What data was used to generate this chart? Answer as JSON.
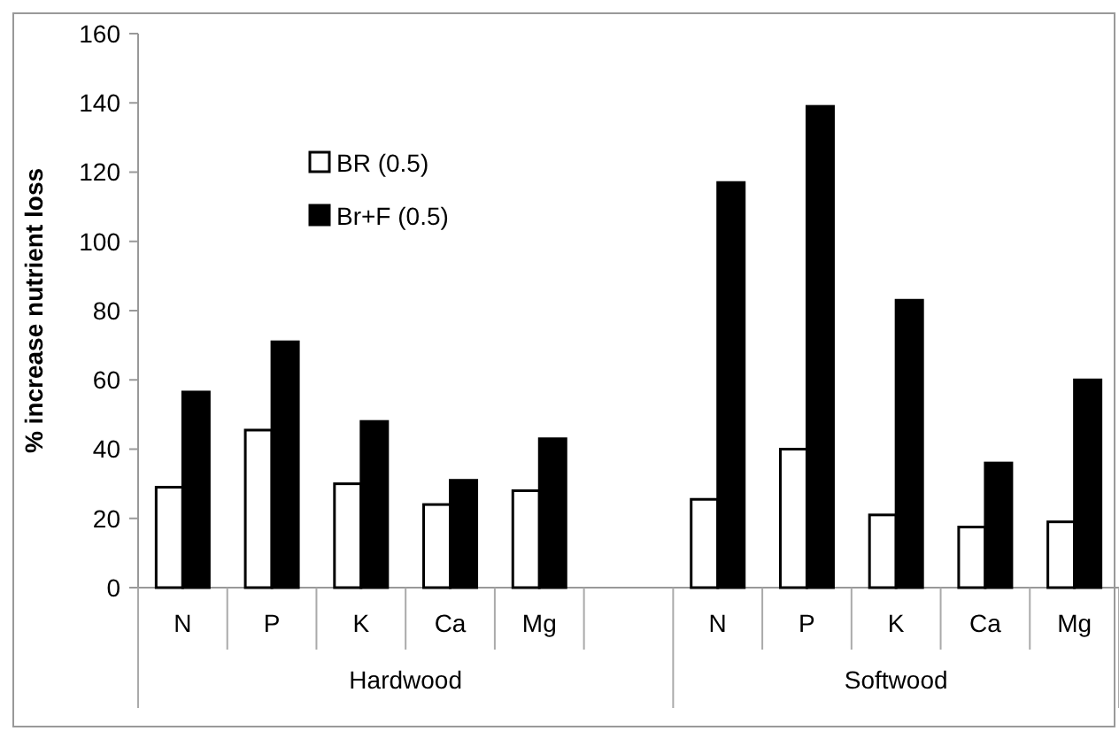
{
  "chart_data": {
    "type": "bar",
    "ylabel": "% increase nutrient loss",
    "categories": [
      "N",
      "P",
      "K",
      "Ca",
      "Mg",
      null,
      "N",
      "P",
      "K",
      "Ca",
      "Mg"
    ],
    "series": [
      {
        "name": "BR (0.5)",
        "color": "#ffffff",
        "values": [
          29,
          45.5,
          30,
          24,
          28,
          null,
          25.5,
          40,
          21,
          17.5,
          19
        ]
      },
      {
        "name": "Br+F (0.5)",
        "color": "#000000",
        "values": [
          56.5,
          71,
          48,
          31,
          43,
          null,
          117,
          139,
          83,
          36,
          60
        ]
      }
    ],
    "annotations": [
      "Hardwood",
      "Softwood"
    ],
    "ylim": [
      0,
      160
    ],
    "yticks": [
      0,
      20,
      40,
      60,
      80,
      100,
      120,
      140,
      160
    ],
    "grid": false,
    "legend": "top left"
  }
}
